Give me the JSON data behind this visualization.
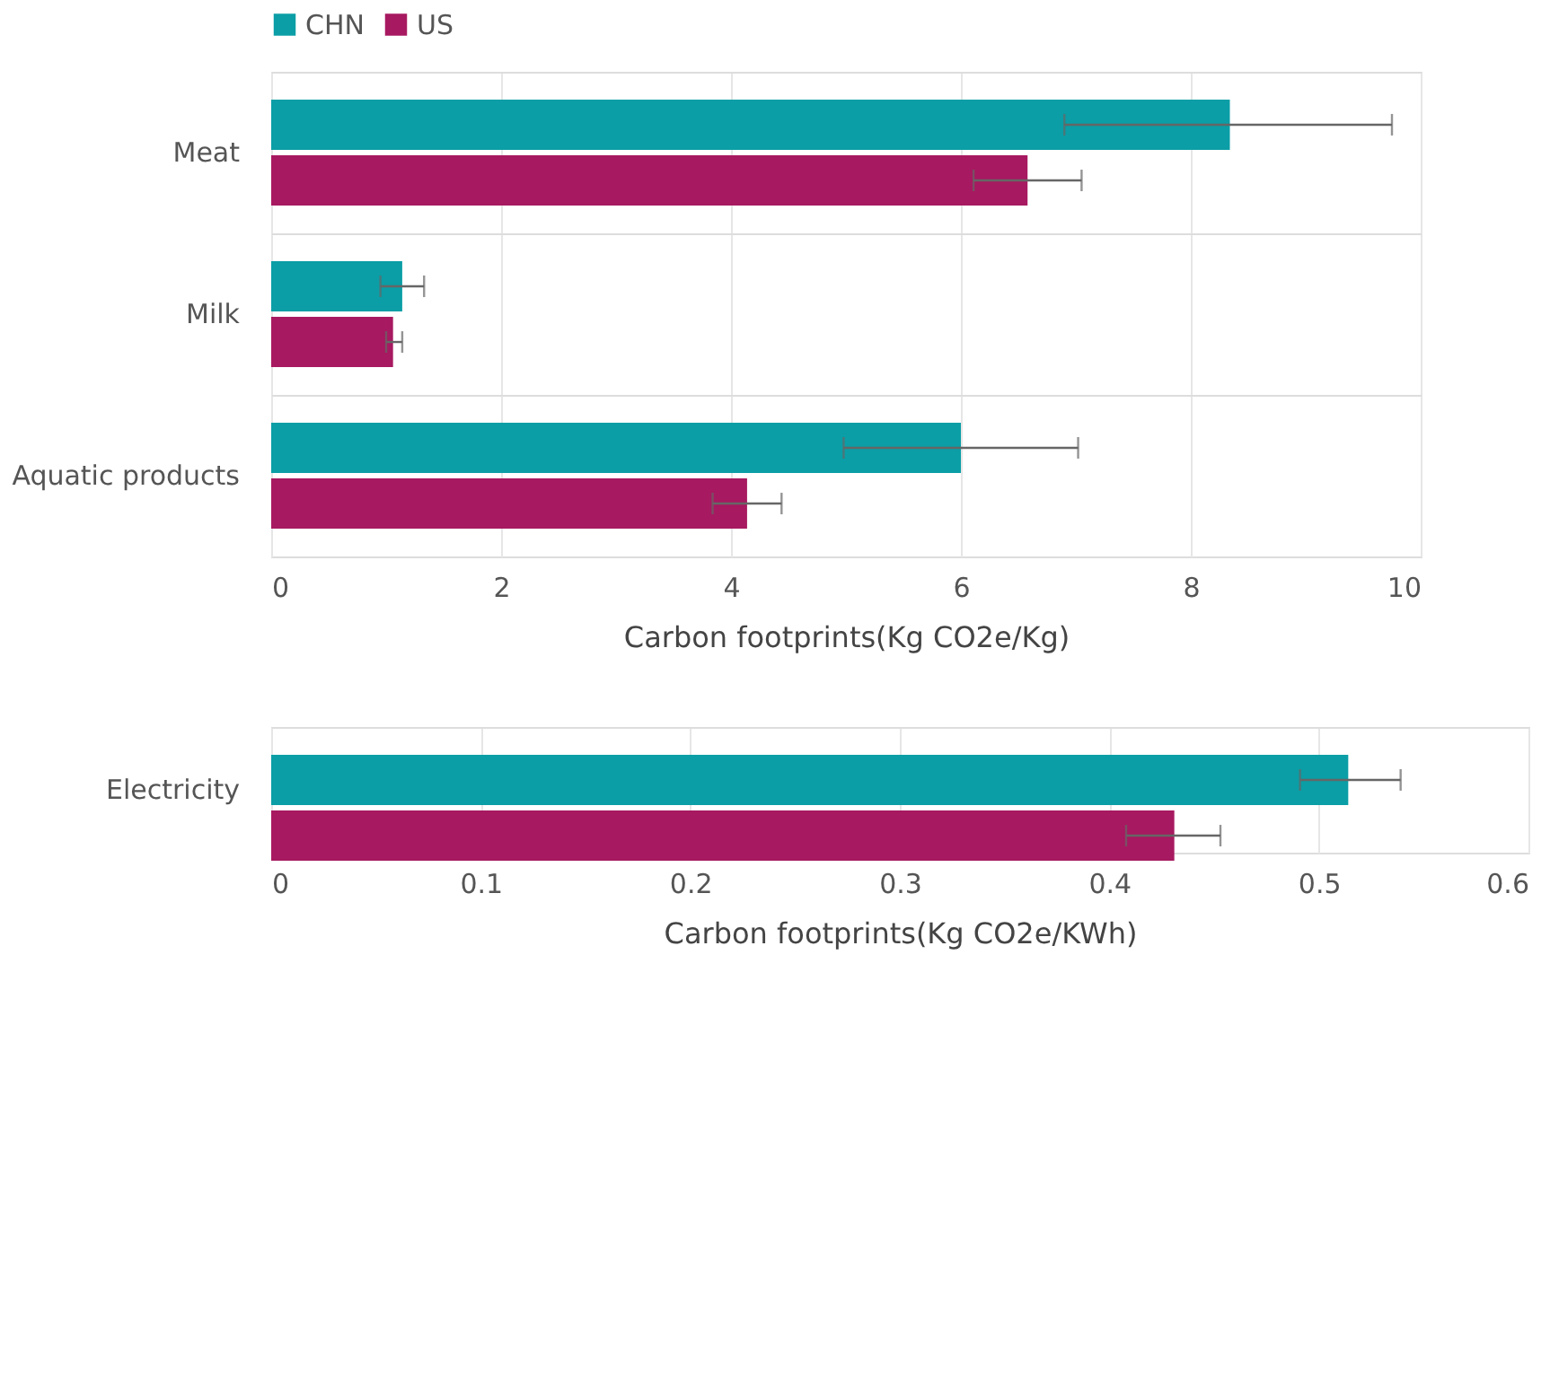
{
  "chart_data": [
    {
      "type": "bar",
      "orientation": "horizontal",
      "categories": [
        "Meat",
        "Milk",
        "Aquatic products"
      ],
      "xlabel": "Carbon footprints(Kg CO2e/Kg)",
      "xlim": [
        0,
        10
      ],
      "xticks": [
        0,
        2,
        4,
        6,
        8,
        10
      ],
      "grid": "x",
      "legend": "top",
      "series": [
        {
          "name": "CHN",
          "color": "#0b9ea6",
          "values": [
            8.34,
            1.14,
            6.0
          ],
          "errors": [
            [
              6.9,
              9.75
            ],
            [
              0.95,
              1.33
            ],
            [
              4.98,
              7.02
            ]
          ]
        },
        {
          "name": "US",
          "color": "#a71960",
          "values": [
            6.58,
            1.06,
            4.14
          ],
          "errors": [
            [
              6.11,
              7.05
            ],
            [
              1.0,
              1.14
            ],
            [
              3.84,
              4.44
            ]
          ]
        }
      ]
    },
    {
      "type": "bar",
      "orientation": "horizontal",
      "categories": [
        "Electricity"
      ],
      "xlabel": "Carbon footprints(Kg CO2e/KWh)",
      "xlim": [
        0,
        0.6
      ],
      "xticks": [
        0,
        0.1,
        0.2,
        0.3,
        0.4,
        0.5,
        0.6
      ],
      "grid": "x",
      "series": [
        {
          "color": "#0b9ea6",
          "values": [
            0.514
          ],
          "errors": [
            [
              0.491,
              0.539
            ]
          ]
        },
        {
          "color": "#a71960",
          "values": [
            0.431
          ],
          "errors": [
            [
              0.408,
              0.453
            ]
          ]
        }
      ]
    }
  ]
}
